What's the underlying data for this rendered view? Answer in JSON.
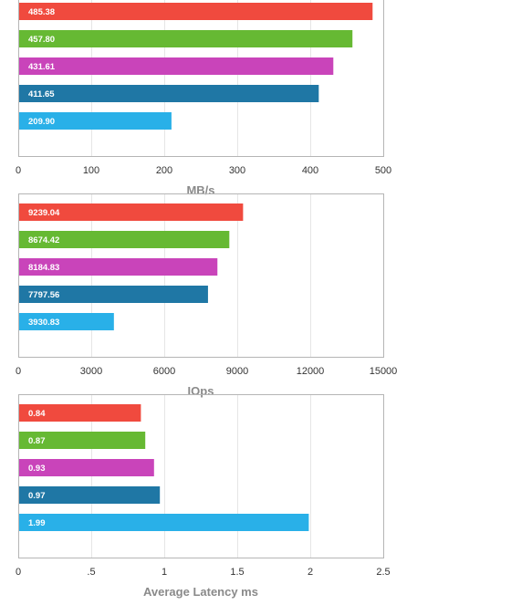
{
  "palette": [
    "#f04a3e",
    "#66b933",
    "#c944ba",
    "#1f77a5",
    "#29b0e8"
  ],
  "chart_data": [
    {
      "type": "bar",
      "orientation": "horizontal",
      "xlabel": "MB/s",
      "xlim": [
        0,
        500
      ],
      "ticks": [
        0,
        100,
        200,
        300,
        400,
        500
      ],
      "tick_labels": [
        "0",
        "100",
        "200",
        "300",
        "400",
        "500"
      ],
      "grid": true,
      "values": [
        485.38,
        457.8,
        431.61,
        411.65,
        209.9
      ],
      "value_labels": [
        "485.38",
        "457.80",
        "431.61",
        "411.65",
        "209.90"
      ]
    },
    {
      "type": "bar",
      "orientation": "horizontal",
      "xlabel": "IOps",
      "xlim": [
        0,
        15000
      ],
      "ticks": [
        0,
        3000,
        6000,
        9000,
        12000,
        15000
      ],
      "tick_labels": [
        "0",
        "3000",
        "6000",
        "9000",
        "12000",
        "15000"
      ],
      "grid": true,
      "values": [
        9239.04,
        8674.42,
        8184.83,
        7797.56,
        3930.83
      ],
      "value_labels": [
        "9239.04",
        "8674.42",
        "8184.83",
        "7797.56",
        "3930.83"
      ]
    },
    {
      "type": "bar",
      "orientation": "horizontal",
      "xlabel": "Average Latency ms",
      "xlim": [
        0,
        2.5
      ],
      "ticks": [
        0,
        0.5,
        1,
        1.5,
        2,
        2.5
      ],
      "tick_labels": [
        "0",
        ".5",
        "1",
        "1.5",
        "2",
        "2.5"
      ],
      "grid": true,
      "values": [
        0.84,
        0.87,
        0.93,
        0.97,
        1.99
      ],
      "value_labels": [
        "0.84",
        "0.87",
        "0.93",
        "0.97",
        "1.99"
      ]
    }
  ]
}
